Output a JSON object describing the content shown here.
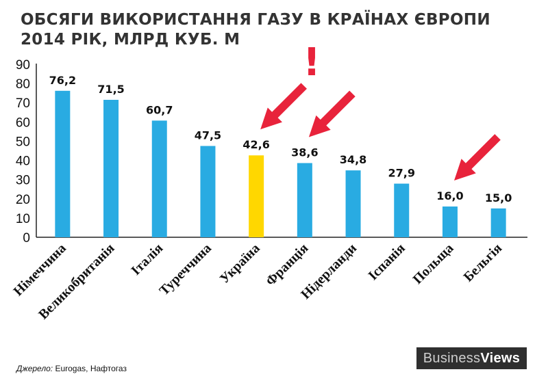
{
  "title": {
    "line1": "ОБСЯГИ ВИКОРИСТАННЯ ГАЗУ В КРАЇНАХ ЄВРОПИ",
    "line2": "2014 РІК, МЛРД КУБ. М"
  },
  "source": {
    "label": "Джерело:",
    "text": "Eurogas, Нафтогаз"
  },
  "brand": {
    "part1": "Business",
    "part2": "Views"
  },
  "exclamation": "!",
  "colors": {
    "bar": "#29abe2",
    "highlight": "#ffd700",
    "arrow": "#e8233b",
    "axis": "#222222"
  },
  "chart_data": {
    "type": "bar",
    "title": "ОБСЯГИ ВИКОРИСТАННЯ ГАЗУ В КРАЇНАХ ЄВРОПИ 2014 РІК, МЛРД КУБ. М",
    "categories": [
      "Німеччина",
      "Великобританія",
      "Італія",
      "Туреччина",
      "Україна",
      "Франція",
      "Нідерланди",
      "Іспанія",
      "Польща",
      "Бельгія"
    ],
    "values": [
      76.2,
      71.5,
      60.7,
      47.5,
      42.6,
      38.6,
      34.8,
      27.9,
      16.0,
      15.0
    ],
    "value_labels": [
      "76,2",
      "71,5",
      "60,7",
      "47,5",
      "42,6",
      "38,6",
      "34,8",
      "27,9",
      "16,0",
      "15,0"
    ],
    "highlighted_category": "Україна",
    "arrows_to": [
      "Україна",
      "Франція",
      "Польща"
    ],
    "yticks": [
      0,
      10,
      20,
      30,
      40,
      50,
      60,
      70,
      80,
      90
    ],
    "ylim": [
      0,
      90
    ],
    "xlabel": "",
    "ylabel": "",
    "grid": false,
    "legend": "none"
  }
}
